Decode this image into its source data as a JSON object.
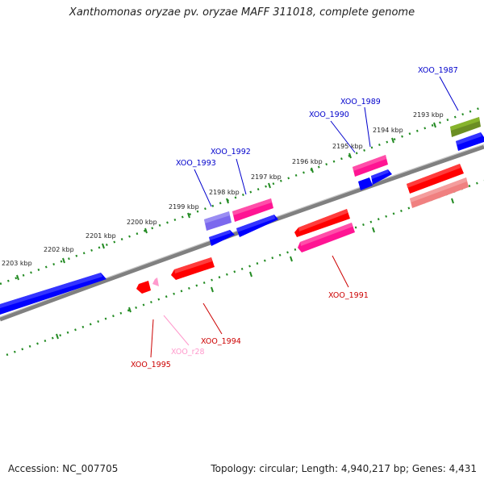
{
  "title": "Xanthomonas oryzae pv. oryzae MAFF 311018, complete genome",
  "footer": {
    "accession": "Accession: NC_007705",
    "topology": "Topology: circular; Length: 4,940,217 bp; Genes: 4,431"
  },
  "kbp_labels": [
    "2193 kbp",
    "2194 kbp",
    "2195 kbp",
    "2196 kbp",
    "2197 kbp",
    "2198 kbp",
    "2199 kbp",
    "2200 kbp",
    "2201 kbp",
    "2202 kbp",
    "2203 kbp"
  ],
  "gene_labels": {
    "xoo_1987": "XOO_1987",
    "xoo_1989": "XOO_1989",
    "xoo_1990": "XOO_1990",
    "xoo_1992": "XOO_1992",
    "xoo_1993": "XOO_1993",
    "xoo_1991": "XOO_1991",
    "xoo_1994": "XOO_1994",
    "xoo_r28": "XOO_r28",
    "xoo_1995": "XOO_1995"
  },
  "colors": {
    "ticks": "#228b22",
    "backbone": "#808080",
    "forward_label": "#0000cc",
    "reverse_label": "#cc0000",
    "rna_label": "#ff99cc",
    "blue_gene": "#0000ff",
    "red_gene": "#ff0000",
    "magenta_gene": "#ff1493",
    "purple_gene": "#7b68ee",
    "olive_gene": "#6b8e23",
    "salmon_gene": "#f08080"
  }
}
